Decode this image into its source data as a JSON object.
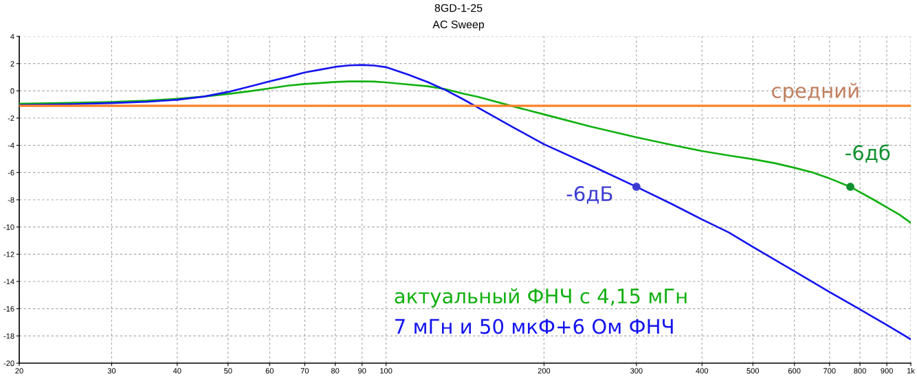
{
  "chart_data": {
    "type": "line",
    "title": "8GD-1-25",
    "subtitle": "AC Sweep",
    "log": "x",
    "xlim": [
      20,
      1000
    ],
    "xticks": [
      20,
      30,
      40,
      50,
      60,
      70,
      80,
      90,
      100,
      200,
      300,
      400,
      500,
      600,
      700,
      800,
      900,
      {
        "value": 1000,
        "label": "1k"
      }
    ],
    "ylim": [
      -20,
      4
    ],
    "yticks": [
      -20,
      -18,
      -16,
      -14,
      -12,
      -10,
      -8,
      -6,
      -4,
      -2,
      0,
      2,
      4
    ],
    "grid": true,
    "series": [
      {
        "name": "актуальный ФНЧ с 4,15 мГн",
        "color": "#10b010",
        "x": [
          20,
          25,
          30,
          35,
          40,
          45,
          50,
          55,
          60,
          65,
          70,
          75,
          80,
          85,
          90,
          95,
          100,
          110,
          120,
          130,
          140,
          150,
          175,
          200,
          245,
          300,
          350,
          400,
          450,
          500,
          550,
          600,
          650,
          700,
          767,
          800,
          850,
          900,
          950,
          1000
        ],
        "values": [
          -0.95,
          -0.88,
          -0.82,
          -0.72,
          -0.58,
          -0.42,
          -0.23,
          -0.03,
          0.18,
          0.38,
          0.5,
          0.58,
          0.65,
          0.69,
          0.7,
          0.68,
          0.62,
          0.47,
          0.34,
          0.12,
          -0.2,
          -0.45,
          -1.15,
          -1.73,
          -2.62,
          -3.41,
          -3.97,
          -4.42,
          -4.75,
          -5.02,
          -5.31,
          -5.65,
          -6.0,
          -6.43,
          -7.05,
          -7.44,
          -8.0,
          -8.56,
          -9.08,
          -9.7
        ]
      },
      {
        "name": "7 мГн и 50 мкФ+6 Ом ФНЧ",
        "color": "#1414f0",
        "x": [
          20,
          25,
          30,
          35,
          40,
          45,
          50,
          55,
          60,
          65,
          70,
          75,
          80,
          85,
          90,
          95,
          100,
          110,
          120,
          130,
          140,
          150,
          175,
          200,
          250,
          300,
          350,
          400,
          450,
          500,
          600,
          700,
          800,
          900,
          1000
        ],
        "values": [
          -1.05,
          -0.98,
          -0.9,
          -0.8,
          -0.66,
          -0.42,
          -0.08,
          0.32,
          0.7,
          1.02,
          1.35,
          1.56,
          1.76,
          1.87,
          1.9,
          1.86,
          1.74,
          1.2,
          0.65,
          0.05,
          -0.6,
          -1.25,
          -2.7,
          -3.92,
          -5.62,
          -7.05,
          -8.3,
          -9.44,
          -10.4,
          -11.46,
          -13.25,
          -14.78,
          -16.05,
          -17.2,
          -18.25
        ]
      },
      {
        "name": "-6дб",
        "type": "scatter",
        "marker": "circle",
        "color": "#109030",
        "x": [
          767
        ],
        "values": [
          -7.05
        ]
      },
      {
        "name": "-6дБ",
        "type": "scatter",
        "marker": "circle",
        "color": "#3c3cd2",
        "x": [
          300
        ],
        "values": [
          -7.05
        ]
      }
    ],
    "ref_lines": [
      {
        "axis": "y",
        "value": -1.1,
        "label": "средний",
        "color": "#ff7f27"
      }
    ]
  }
}
